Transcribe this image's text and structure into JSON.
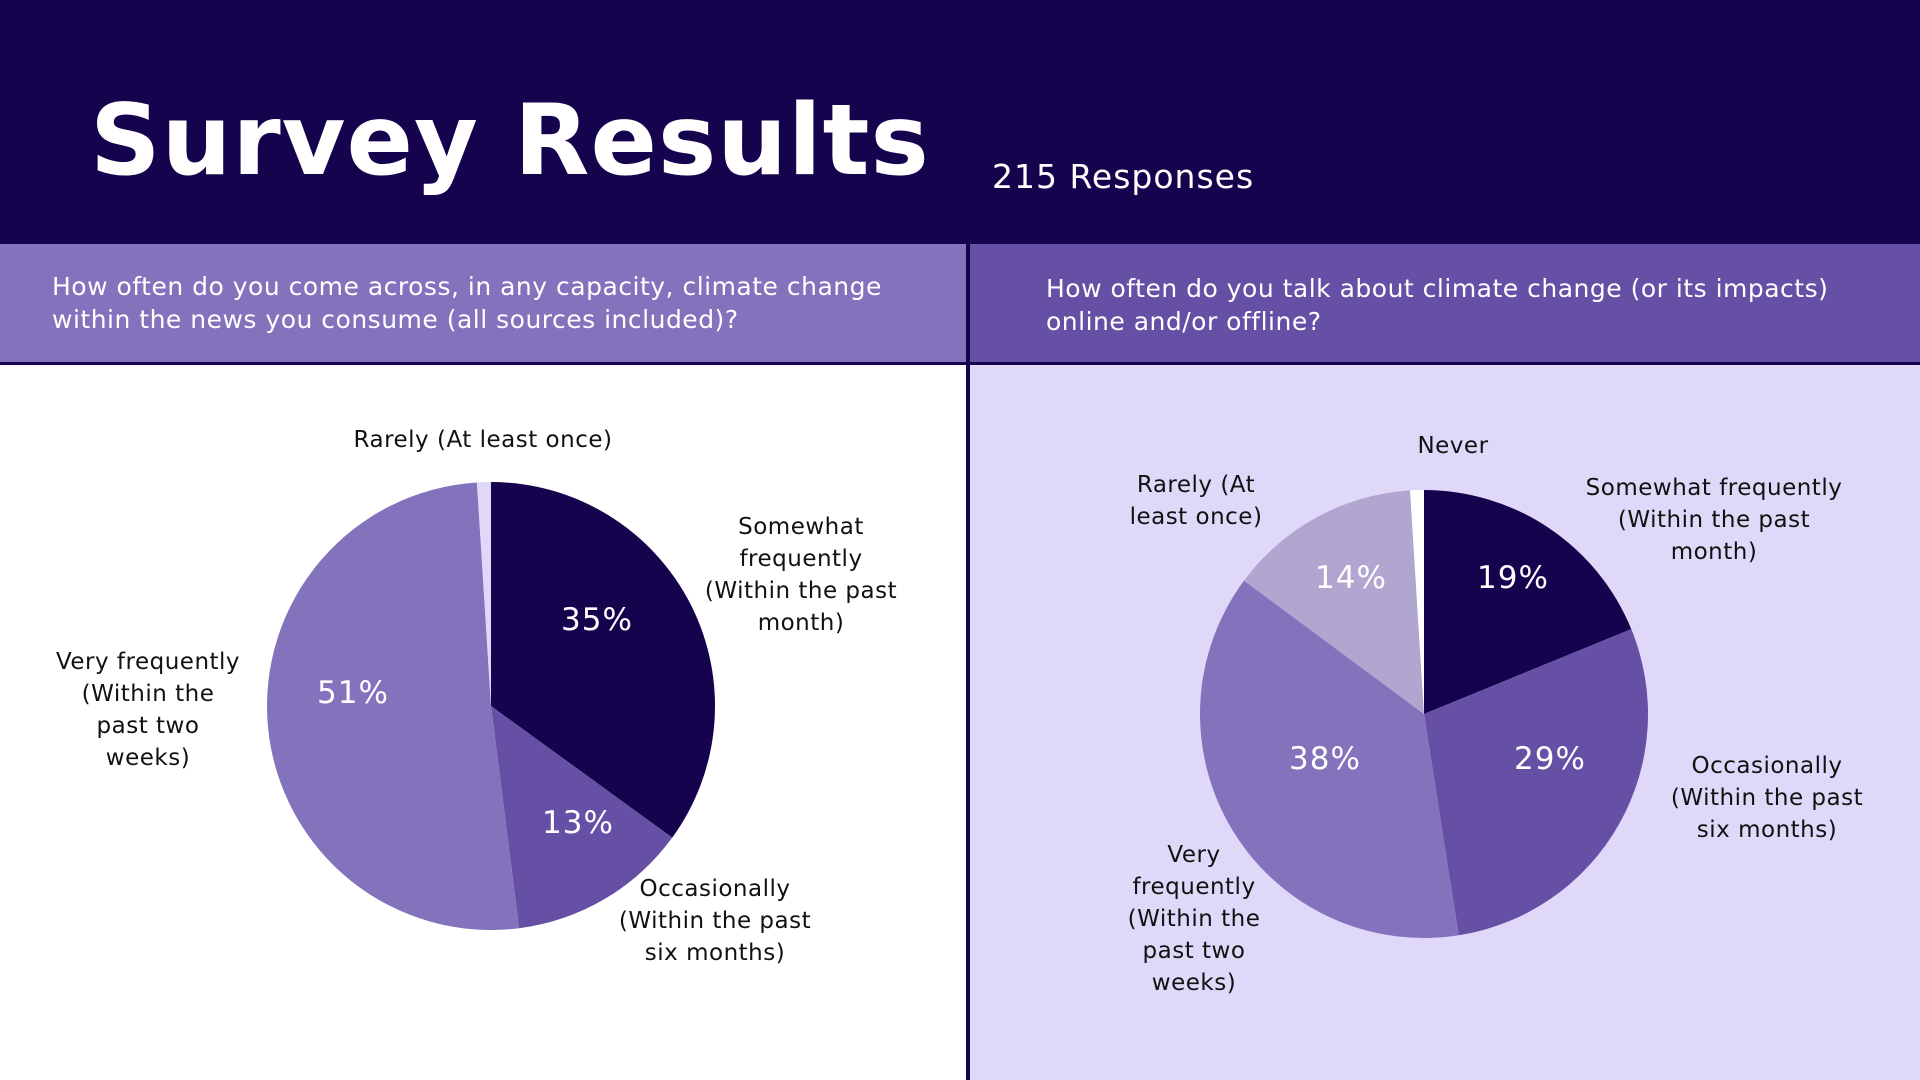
{
  "header": {
    "title": "Survey Results",
    "responses": "215 Responses"
  },
  "questions": {
    "left": "How often do you come across, in any capacity, climate change within the news you consume (all sources included)?",
    "right": "How often do you talk about climate change (or its impacts) online and/or offline?"
  },
  "colors": {
    "header_bg": "#15044d",
    "left_question_bg": "#8372bc",
    "right_question_bg": "#6550a5",
    "right_panel_bg": "#dfd8f8"
  },
  "chart_data": [
    {
      "type": "pie",
      "title": "How often do you come across, in any capacity, climate change within the news you consume (all sources included)?",
      "slices": [
        {
          "label": [
            "Somewhat",
            "frequently",
            "(Within the past",
            "month)"
          ],
          "value": 35,
          "value_label": "35%",
          "color": "#15044d"
        },
        {
          "label": [
            "Occasionally",
            "(Within the past",
            "six months)"
          ],
          "value": 13,
          "value_label": "13%",
          "color": "#6550a5"
        },
        {
          "label": [
            "Very frequently",
            "(Within the",
            "past two",
            "weeks)"
          ],
          "value": 51,
          "value_label": "51%",
          "color": "#8372bc"
        },
        {
          "label": [
            "Rarely (At least once)"
          ],
          "value": 1,
          "value_label": "",
          "color": "#dfd8f8"
        }
      ]
    },
    {
      "type": "pie",
      "title": "How often do you talk about climate change (or its impacts) online and/or offline?",
      "slices": [
        {
          "label": [
            "Somewhat frequently",
            "(Within the past",
            "month)"
          ],
          "value": 19,
          "value_label": "19%",
          "color": "#15044d"
        },
        {
          "label": [
            "Occasionally",
            "(Within the past",
            "six months)"
          ],
          "value": 29,
          "value_label": "29%",
          "color": "#6550a5"
        },
        {
          "label": [
            "Very",
            "frequently",
            "(Within the",
            "past two",
            "weeks)"
          ],
          "value": 38,
          "value_label": "38%",
          "color": "#8372bc"
        },
        {
          "label": [
            "Rarely (At",
            "least once)"
          ],
          "value": 14,
          "value_label": "14%",
          "color": "#b1a6d0"
        },
        {
          "label": [
            "Never"
          ],
          "value": 1,
          "value_label": "",
          "color": "#ffffff"
        }
      ]
    }
  ]
}
